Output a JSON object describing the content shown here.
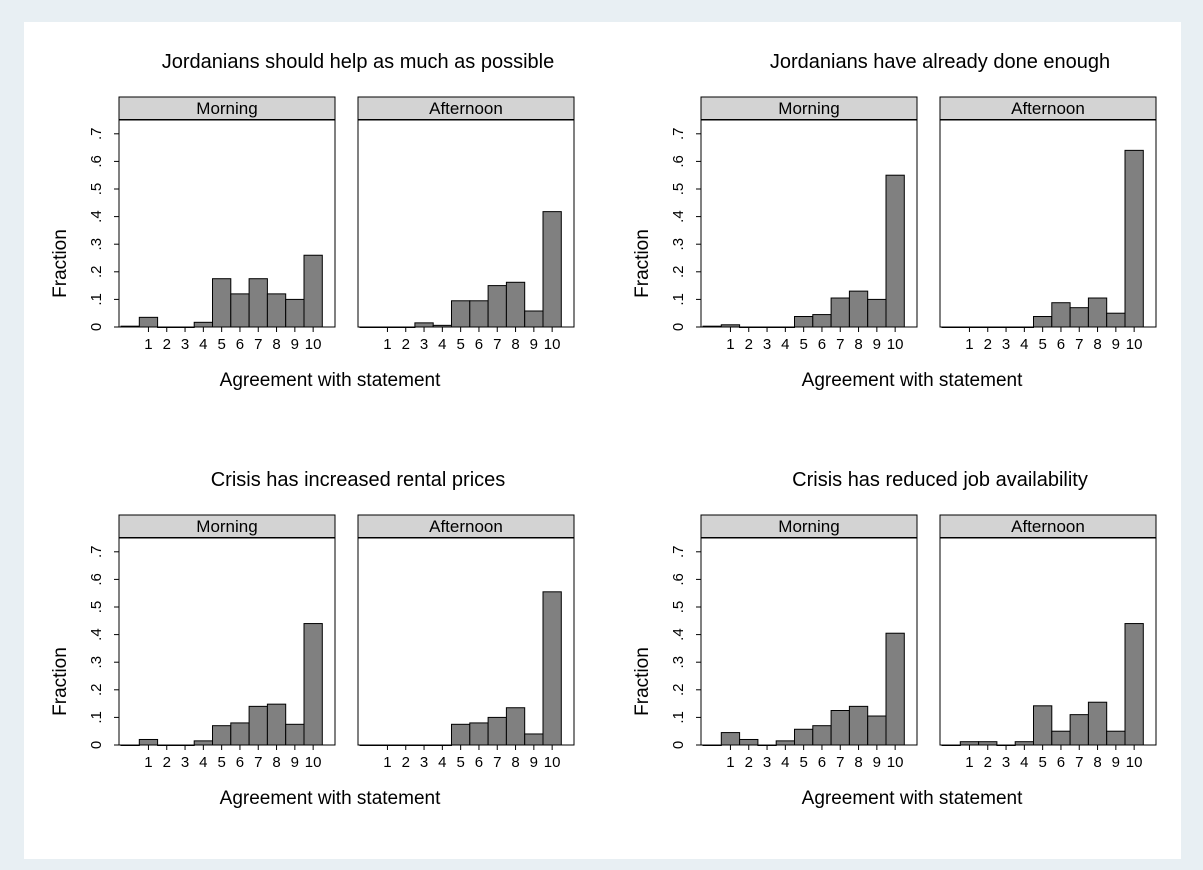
{
  "figure": {
    "background": "#e8eff3",
    "plot_background": "#ffffff",
    "bar_color": "#808080",
    "strip_color": "#d3d3d3"
  },
  "chart_data": [
    {
      "type": "bar",
      "title": "Jordanians should help as much as possible",
      "xlabel": "Agreement with statement",
      "ylabel": "Fraction",
      "x_ticks": [
        "1",
        "2",
        "3",
        "4",
        "5",
        "6",
        "7",
        "8",
        "9",
        "10"
      ],
      "y_ticks": [
        "0",
        ".1",
        ".2",
        ".3",
        ".4",
        ".5",
        ".6",
        ".7"
      ],
      "ylim": [
        0,
        0.75
      ],
      "panels": [
        {
          "name": "Morning",
          "categories": [
            0,
            1,
            2,
            3,
            4,
            5,
            6,
            7,
            8,
            9,
            10
          ],
          "values": [
            0.003,
            0.035,
            0,
            0,
            0.017,
            0.175,
            0.12,
            0.175,
            0.12,
            0.1,
            0.26
          ]
        },
        {
          "name": "Afternoon",
          "categories": [
            0,
            1,
            2,
            3,
            4,
            5,
            6,
            7,
            8,
            9,
            10
          ],
          "values": [
            0,
            0,
            0,
            0.015,
            0.006,
            0.095,
            0.095,
            0.15,
            0.162,
            0.058,
            0.418
          ]
        }
      ]
    },
    {
      "type": "bar",
      "title": "Jordanians have already done enough",
      "xlabel": "Agreement with statement",
      "ylabel": "Fraction",
      "x_ticks": [
        "1",
        "2",
        "3",
        "4",
        "5",
        "6",
        "7",
        "8",
        "9",
        "10"
      ],
      "y_ticks": [
        "0",
        ".1",
        ".2",
        ".3",
        ".4",
        ".5",
        ".6",
        ".7"
      ],
      "ylim": [
        0,
        0.75
      ],
      "panels": [
        {
          "name": "Morning",
          "categories": [
            0,
            1,
            2,
            3,
            4,
            5,
            6,
            7,
            8,
            9,
            10
          ],
          "values": [
            0.003,
            0.008,
            0,
            0,
            0,
            0.038,
            0.045,
            0.105,
            0.13,
            0.1,
            0.55
          ]
        },
        {
          "name": "Afternoon",
          "categories": [
            0,
            1,
            2,
            3,
            4,
            5,
            6,
            7,
            8,
            9,
            10
          ],
          "values": [
            0,
            0,
            0,
            0,
            0,
            0.038,
            0.088,
            0.07,
            0.105,
            0.05,
            0.64
          ]
        }
      ]
    },
    {
      "type": "bar",
      "title": "Crisis has increased rental prices",
      "xlabel": "Agreement with statement",
      "ylabel": "Fraction",
      "x_ticks": [
        "1",
        "2",
        "3",
        "4",
        "5",
        "6",
        "7",
        "8",
        "9",
        "10"
      ],
      "y_ticks": [
        "0",
        ".1",
        ".2",
        ".3",
        ".4",
        ".5",
        ".6",
        ".7"
      ],
      "ylim": [
        0,
        0.75
      ],
      "panels": [
        {
          "name": "Morning",
          "categories": [
            0,
            1,
            2,
            3,
            4,
            5,
            6,
            7,
            8,
            9,
            10
          ],
          "values": [
            0,
            0.02,
            0,
            0,
            0.015,
            0.07,
            0.08,
            0.14,
            0.148,
            0.075,
            0.44
          ]
        },
        {
          "name": "Afternoon",
          "categories": [
            0,
            1,
            2,
            3,
            4,
            5,
            6,
            7,
            8,
            9,
            10
          ],
          "values": [
            0,
            0,
            0,
            0,
            0,
            0.075,
            0.08,
            0.1,
            0.135,
            0.04,
            0.555
          ]
        }
      ]
    },
    {
      "type": "bar",
      "title": "Crisis has reduced job availability",
      "xlabel": "Agreement with statement",
      "ylabel": "Fraction",
      "x_ticks": [
        "1",
        "2",
        "3",
        "4",
        "5",
        "6",
        "7",
        "8",
        "9",
        "10"
      ],
      "y_ticks": [
        "0",
        ".1",
        ".2",
        ".3",
        ".4",
        ".5",
        ".6",
        ".7"
      ],
      "ylim": [
        0,
        0.75
      ],
      "panels": [
        {
          "name": "Morning",
          "categories": [
            0,
            1,
            2,
            3,
            4,
            5,
            6,
            7,
            8,
            9,
            10
          ],
          "values": [
            0,
            0.045,
            0.02,
            0,
            0.015,
            0.057,
            0.07,
            0.125,
            0.14,
            0.105,
            0.405
          ]
        },
        {
          "name": "Afternoon",
          "categories": [
            0,
            1,
            2,
            3,
            4,
            5,
            6,
            7,
            8,
            9,
            10
          ],
          "values": [
            0,
            0.012,
            0.012,
            0,
            0.012,
            0.142,
            0.05,
            0.11,
            0.155,
            0.05,
            0.44
          ]
        }
      ]
    }
  ]
}
